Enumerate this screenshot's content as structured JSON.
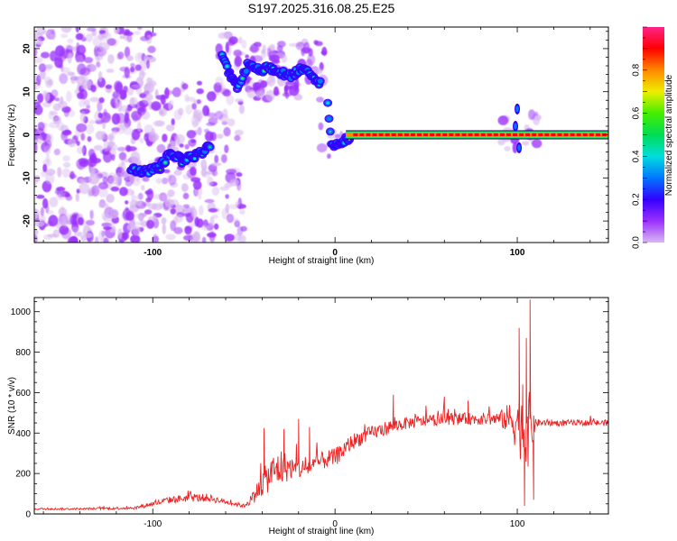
{
  "title": "S197.2025.316.08.25.E25",
  "colors": {
    "signal_line": "#ee2222",
    "colormap": [
      "#ffffff",
      "#d8b8f0",
      "#9b30ff",
      "#3300ff",
      "#0077ff",
      "#00dddd",
      "#00dd55",
      "#44ee00",
      "#eeee00",
      "#ff8800",
      "#ff0000",
      "#ff2288"
    ]
  },
  "chart_data": [
    {
      "type": "heatmap",
      "name": "spectrogram",
      "xlabel": "Height of straight line (km)",
      "ylabel": "Frequency (Hz)",
      "xlim": [
        -165,
        150
      ],
      "ylim": [
        -25,
        25
      ],
      "x_ticks": [
        "-100",
        "0",
        "100"
      ],
      "y_ticks": [
        "20",
        "10",
        "0",
        "-10",
        "-20"
      ],
      "ridge": {
        "x": [
          -112,
          -104,
          -96,
          -90,
          -84,
          -78,
          -72,
          -68,
          -63,
          -58,
          -53,
          -48,
          -42,
          -36,
          -30,
          -24,
          -19,
          -14,
          -10,
          -5,
          -2,
          2,
          6,
          10,
          30,
          60,
          90,
          96,
          100,
          104,
          110,
          150
        ],
        "y": [
          -8,
          -8.5,
          -7.5,
          -4,
          -6,
          -5,
          -4,
          -2,
          19,
          14,
          11,
          16,
          15,
          15.5,
          14.5,
          13.5,
          15.5,
          14,
          12,
          12,
          -2.5,
          -2,
          -1.2,
          0,
          0,
          0,
          0,
          -0.5,
          0,
          0,
          0,
          0
        ]
      },
      "colorbar": {
        "label": "Normalized spectral amplitude",
        "range": [
          0,
          1
        ],
        "ticks": [
          "0.0",
          "0.2",
          "0.4",
          "0.6",
          "0.8"
        ]
      }
    },
    {
      "type": "line",
      "name": "snr",
      "xlabel": "Height of straight line (km)",
      "ylabel": "SNR (10 * v/v)",
      "xlim": [
        -165,
        150
      ],
      "ylim": [
        0,
        1070
      ],
      "x_ticks": [
        "-100",
        "0",
        "100"
      ],
      "y_ticks": [
        "0",
        "200",
        "400",
        "600",
        "800",
        "1000"
      ],
      "series": [
        {
          "x": [
            -165,
            -140,
            -110,
            -100,
            -90,
            -80,
            -70,
            -60,
            -50,
            -45,
            -40,
            -35,
            -30,
            -25,
            -20,
            -15,
            -10,
            -5,
            0,
            5,
            10,
            20,
            30,
            40,
            50,
            60,
            70,
            80,
            90,
            95,
            100,
            103,
            106,
            108,
            110,
            120,
            130,
            140,
            150
          ],
          "mean": [
            25,
            25,
            30,
            50,
            70,
            80,
            80,
            60,
            40,
            80,
            150,
            200,
            230,
            230,
            220,
            230,
            250,
            270,
            280,
            320,
            360,
            400,
            430,
            450,
            460,
            470,
            470,
            470,
            470,
            470,
            460,
            430,
            420,
            440,
            450,
            450,
            450,
            450,
            450
          ],
          "amp": [
            10,
            10,
            15,
            25,
            35,
            40,
            40,
            25,
            20,
            60,
            130,
            170,
            200,
            120,
            100,
            90,
            90,
            90,
            90,
            90,
            80,
            70,
            70,
            60,
            60,
            60,
            60,
            60,
            70,
            150,
            300,
            380,
            380,
            300,
            40,
            30,
            30,
            30,
            30
          ],
          "peaks": [
            {
              "x": -39,
              "y": 425
            },
            {
              "x": -28,
              "y": 420
            },
            {
              "x": -20,
              "y": 470
            },
            {
              "x": -14,
              "y": 430
            },
            {
              "x": 32,
              "y": 590
            },
            {
              "x": 60,
              "y": 580
            },
            {
              "x": 73,
              "y": 560
            },
            {
              "x": 101,
              "y": 920
            },
            {
              "x": 103,
              "y": 640
            },
            {
              "x": 105,
              "y": 870
            },
            {
              "x": 107,
              "y": 1060
            },
            {
              "x": 104,
              "y": 40
            },
            {
              "x": 109,
              "y": 70
            }
          ]
        }
      ]
    }
  ]
}
